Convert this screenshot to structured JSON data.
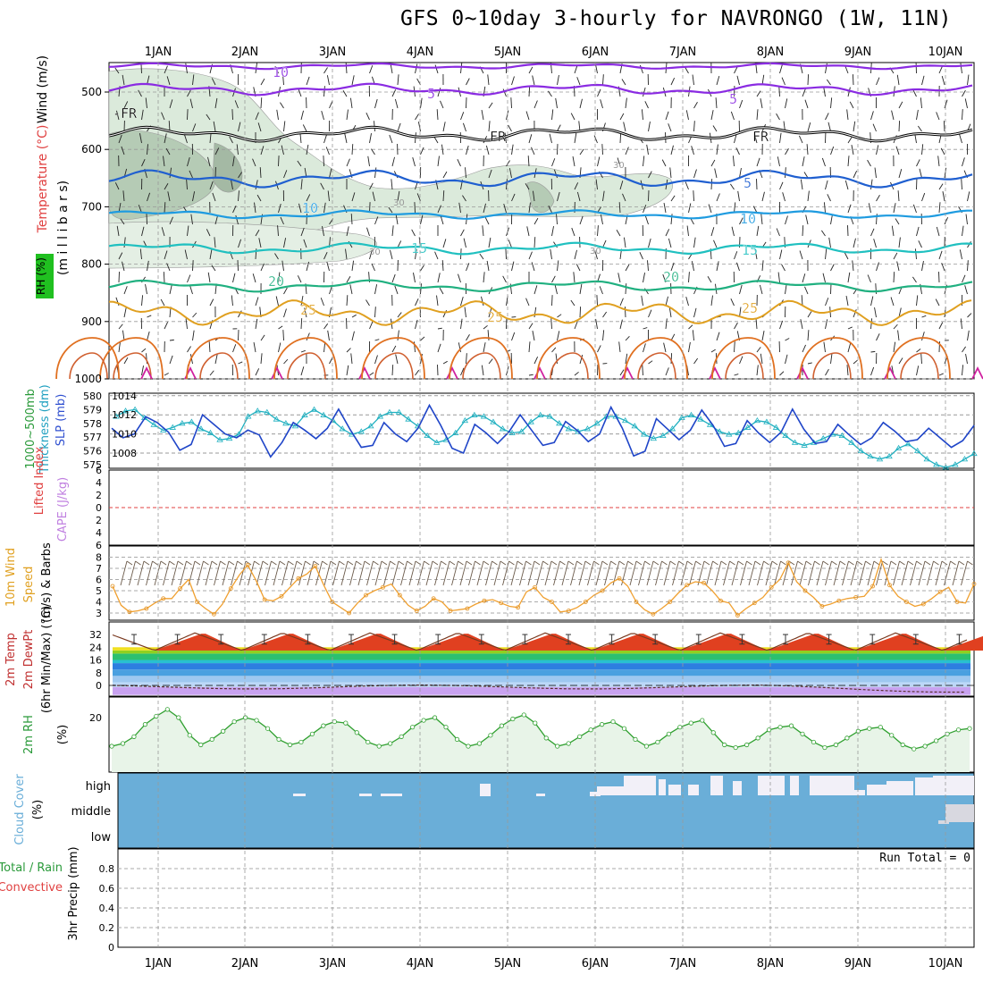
{
  "title": "GFS 0~10day 3-hourly for NAVRONGO (1W, 11N)",
  "days": [
    "1JAN",
    "2JAN",
    "3JAN",
    "4JAN",
    "5JAN",
    "6JAN",
    "7JAN",
    "8JAN",
    "9JAN",
    "10JAN"
  ],
  "panel_labels": {
    "upper_wind": "Wind (m/s)",
    "upper_temp": "Temperature (°C)",
    "upper_pres": "(m i l l i b a r s)",
    "upper_rh": "RH (%)",
    "thick_a": "1000~500mb",
    "thick_b": "Thickness (dm)",
    "slp": "SLP (mb)",
    "li": "Lifted Index",
    "cape": "CAPE (J/kg)",
    "w10a": "10m Wind",
    "w10b": "Speed",
    "w10c": "(m/s) & Barbs",
    "t2a": "2m Temp",
    "t2b": "2m DewPt",
    "t2c": "(6hr Min/Max) (°C)",
    "rh2a": "2m RH",
    "rh2b": "(%)",
    "ccA": "Cloud Cover",
    "ccB": "(%)",
    "prA": "Total / Rain",
    "prB": "Convective",
    "prC": "3hr Precip (mm)",
    "run_total": "Run Total = 0"
  },
  "chart_data": [
    {
      "type": "contour",
      "name": "upper-air",
      "ylim": [
        1000,
        450
      ],
      "yticks": [
        500,
        600,
        700,
        800,
        900,
        1000
      ],
      "isotherm_labels": [
        "10",
        "5",
        "FR",
        "5",
        "10",
        "15",
        "20",
        "25",
        "30"
      ],
      "isotherm_colors": {
        "10": "#8a2be2",
        "5": "#8a2be2",
        "FR": "#000000",
        "-5": "#1f5fd0",
        "-10": "#1e9be0",
        "-15": "#20c0c0",
        "-20": "#20b080",
        "-25": "#e0a020",
        "-30": "#e07020"
      }
    },
    {
      "type": "line",
      "name": "thickness-slp",
      "thickness_yticks": [
        575,
        576,
        577,
        578,
        579,
        580
      ],
      "slp_yticks": [
        1008,
        1010,
        1012,
        1014
      ],
      "thickness": [
        578.5,
        578.9,
        579.0,
        578.4,
        577.9,
        577.5,
        577.7,
        578.0,
        578.1,
        577.6,
        577.3,
        576.8,
        576.9,
        577.2,
        578.5,
        578.9,
        578.8,
        578.3,
        578.0,
        577.8,
        578.6,
        579.0,
        578.6,
        578.2,
        577.6,
        577.2,
        577.4,
        577.8,
        578.5,
        578.8,
        578.8,
        578.3,
        577.8,
        577.1,
        576.6,
        576.8,
        577.3,
        578.2,
        578.6,
        578.5,
        578.1,
        577.6,
        577.3,
        577.4,
        578.1,
        578.6,
        578.5,
        578.0,
        577.6,
        577.4,
        577.6,
        578.0,
        578.5,
        578.5,
        578.2,
        577.8,
        577.2,
        576.9,
        577.1,
        577.6,
        578.4,
        578.6,
        578.3,
        577.9,
        577.4,
        577.2,
        577.3,
        577.7,
        578.2,
        578.1,
        577.7,
        577.1,
        576.6,
        576.4,
        576.6,
        576.9,
        577.2,
        577.1,
        576.6,
        576.0,
        575.6,
        575.4,
        575.6,
        576.2,
        576.5,
        576.0,
        575.4,
        575.0,
        574.8,
        575.0,
        575.4,
        575.8
      ],
      "slp": [
        1010.6,
        1009.6,
        1010.0,
        1011.8,
        1011.2,
        1010.2,
        1008.3,
        1008.9,
        1012.0,
        1011.0,
        1010.0,
        1009.6,
        1010.4,
        1009.9,
        1007.6,
        1009.1,
        1011.2,
        1010.4,
        1009.5,
        1010.6,
        1012.6,
        1010.5,
        1008.6,
        1008.8,
        1011.2,
        1010.0,
        1009.2,
        1010.6,
        1013.0,
        1010.9,
        1008.5,
        1008.0,
        1011.0,
        1010.1,
        1009.0,
        1010.2,
        1012.0,
        1010.4,
        1008.8,
        1009.1,
        1011.3,
        1010.4,
        1009.2,
        1010.0,
        1012.8,
        1010.6,
        1007.7,
        1008.2,
        1011.6,
        1010.5,
        1009.4,
        1010.4,
        1012.5,
        1010.9,
        1008.7,
        1009.0,
        1011.4,
        1010.1,
        1009.1,
        1010.2,
        1012.6,
        1010.5,
        1009.0,
        1009.2,
        1011.0,
        1009.9,
        1008.9,
        1009.6,
        1011.2,
        1010.3,
        1009.2,
        1009.4,
        1010.6,
        1009.6,
        1008.6,
        1009.3,
        1010.9
      ]
    },
    {
      "type": "line",
      "name": "lifted-index-cape",
      "li_yticks": [
        6,
        4,
        2,
        0,
        -2,
        -4,
        -6
      ],
      "li_values": [],
      "cape_values": []
    },
    {
      "type": "line",
      "name": "10m-wind",
      "yticks": [
        3,
        4,
        5,
        6,
        7,
        8
      ],
      "speed": [
        5.4,
        3.7,
        3.1,
        3.2,
        3.4,
        3.9,
        4.3,
        4.3,
        5.2,
        6.0,
        4.0,
        3.4,
        2.9,
        3.8,
        5.2,
        6.4,
        7.3,
        5.9,
        4.2,
        4.1,
        4.5,
        5.3,
        6.1,
        6.5,
        7.2,
        5.5,
        4.0,
        3.5,
        3.0,
        3.9,
        4.6,
        5.0,
        5.3,
        5.6,
        4.6,
        3.7,
        3.2,
        3.6,
        4.3,
        4.0,
        3.2,
        3.3,
        3.4,
        3.8,
        4.1,
        4.2,
        3.9,
        3.6,
        3.5,
        4.9,
        5.3,
        4.4,
        4.0,
        3.1,
        3.2,
        3.5,
        4.0,
        4.6,
        5.0,
        5.7,
        6.1,
        5.4,
        4.0,
        3.3,
        2.9,
        3.4,
        4.0,
        4.8,
        5.5,
        5.8,
        5.7,
        5.0,
        4.1,
        3.9,
        2.8,
        3.4,
        3.9,
        4.4,
        5.3,
        6.0,
        7.5,
        5.8,
        5.0,
        4.4,
        3.6,
        3.8,
        4.1,
        4.3,
        4.4,
        4.5,
        5.4,
        7.8,
        5.5,
        4.5,
        4.0,
        3.6,
        3.8,
        4.3,
        4.9,
        5.3,
        4.0,
        3.9,
        5.6
      ]
    },
    {
      "type": "area",
      "name": "2m-temp",
      "yticks": [
        0,
        8,
        16,
        24,
        32
      ],
      "temperature_max": [
        30,
        30,
        33,
        33,
        33,
        33,
        33,
        33,
        33,
        33
      ],
      "temperature_min": [
        22,
        22,
        22,
        22,
        22,
        22,
        22,
        22,
        22,
        22
      ],
      "dewpoint": [
        -1,
        -2,
        -1,
        0,
        -1,
        -1,
        -2,
        -1,
        -3,
        -4
      ]
    },
    {
      "type": "area",
      "name": "2m-rh",
      "yticks": [
        20
      ],
      "values": [
        9.5,
        10.5,
        13,
        17.5,
        20.5,
        23,
        20,
        13.5,
        10,
        12,
        15,
        18.5,
        20,
        19,
        16,
        12,
        10,
        11,
        14,
        17,
        18.5,
        18,
        14.5,
        11,
        9.5,
        10.5,
        13,
        16.5,
        19,
        20,
        16.5,
        12,
        9.5,
        10.5,
        13.5,
        17,
        19.5,
        21,
        18,
        12.5,
        9.5,
        10.5,
        13,
        15.5,
        17.5,
        18.5,
        16,
        12,
        9.5,
        11,
        14,
        16.5,
        18,
        19,
        14.5,
        10,
        9,
        10,
        12.5,
        15.5,
        16.5,
        17,
        14,
        11,
        9,
        10,
        12.5,
        15,
        16,
        16.5,
        13.5,
        10,
        8.5,
        9.5,
        11.5,
        14,
        15.5,
        16
      ]
    },
    {
      "type": "heatmap",
      "name": "cloud-cover",
      "levels": [
        "high",
        "middle",
        "low"
      ]
    },
    {
      "type": "bar",
      "name": "3hr-precip",
      "yticks": [
        0,
        0.2,
        0.4,
        0.6,
        0.8
      ],
      "ylim": [
        0,
        1
      ],
      "values": []
    }
  ]
}
